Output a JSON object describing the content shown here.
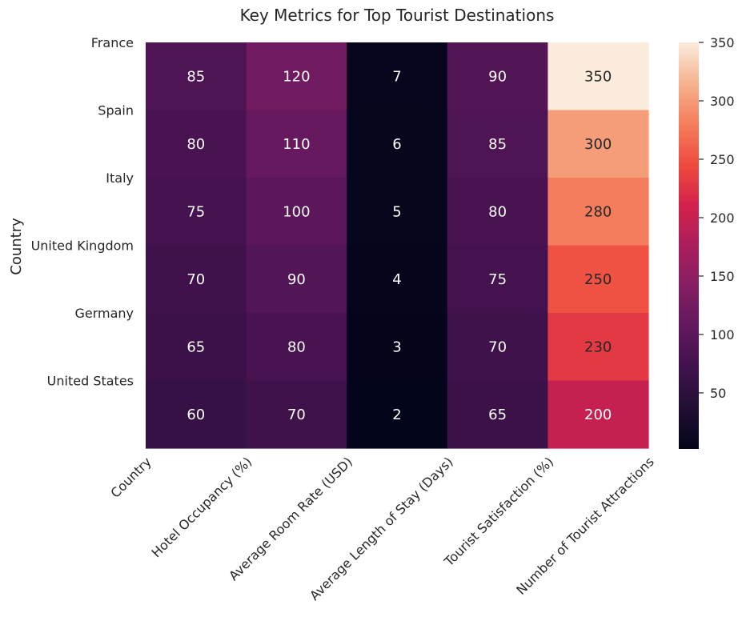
{
  "chart_data": {
    "type": "heatmap",
    "title": "Key Metrics for Top Tourist Destinations",
    "ylabel": "Country",
    "rows": [
      "France",
      "Spain",
      "Italy",
      "United Kingdom",
      "Germany",
      "United States"
    ],
    "columns": [
      "Country",
      "Hotel Occupancy (%)",
      "Average Room Rate (USD)",
      "Average Length of Stay (Days)",
      "Tourist Satisfaction (%)",
      "Number of Tourist Attractions"
    ],
    "values": [
      [
        85,
        120,
        7,
        90,
        350
      ],
      [
        80,
        110,
        6,
        85,
        300
      ],
      [
        75,
        100,
        5,
        80,
        280
      ],
      [
        70,
        90,
        4,
        75,
        250
      ],
      [
        65,
        80,
        3,
        70,
        230
      ],
      [
        60,
        70,
        2,
        65,
        200
      ]
    ],
    "colorbar": {
      "range": [
        2,
        350
      ],
      "ticks": [
        50,
        100,
        150,
        200,
        250,
        300,
        350
      ],
      "colormap": "rocket"
    }
  }
}
